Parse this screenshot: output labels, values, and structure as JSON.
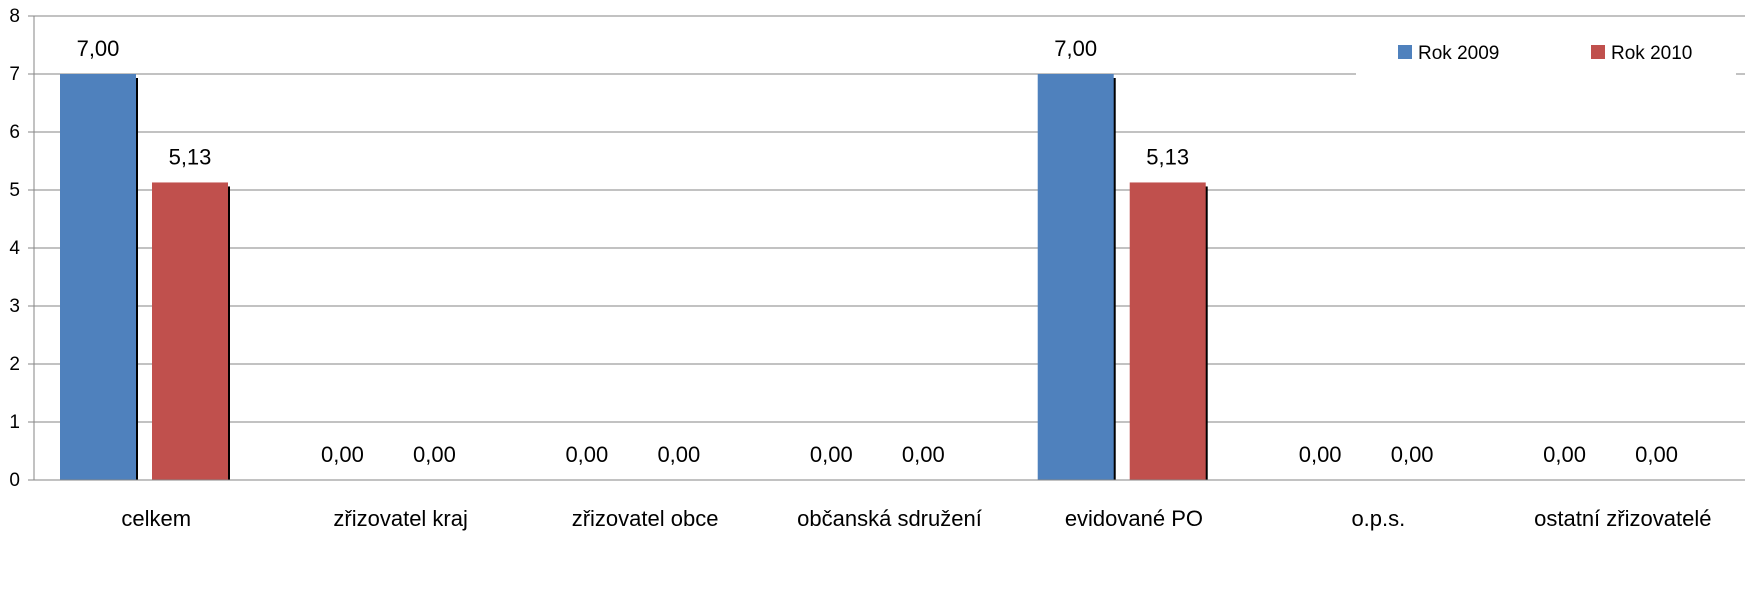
{
  "chart_data": {
    "type": "bar",
    "categories": [
      "celkem",
      "zřizovatel kraj",
      "zřizovatel obce",
      "občanská sdružení",
      "evidované PO",
      "o.p.s.",
      "ostatní zřizovatelé"
    ],
    "series": [
      {
        "name": "Rok 2009",
        "color": "#4F81BD",
        "values": [
          7.0,
          0.0,
          0.0,
          0.0,
          7.0,
          0.0,
          0.0
        ],
        "labels": [
          "7,00",
          "0,00",
          "0,00",
          "0,00",
          "7,00",
          "0,00",
          "0,00"
        ]
      },
      {
        "name": "Rok 2010",
        "color": "#C0504D",
        "values": [
          5.13,
          0.0,
          0.0,
          0.0,
          5.13,
          0.0,
          0.0
        ],
        "labels": [
          "5,13",
          "0,00",
          "0,00",
          "0,00",
          "5,13",
          "0,00",
          "0,00"
        ]
      }
    ],
    "ylim": [
      0,
      8
    ],
    "yticks": [
      "0",
      "1",
      "2",
      "3",
      "4",
      "5",
      "6",
      "7",
      "8"
    ],
    "grid": true,
    "legend_position": "top-right",
    "title": "",
    "xlabel": "",
    "ylabel": ""
  }
}
